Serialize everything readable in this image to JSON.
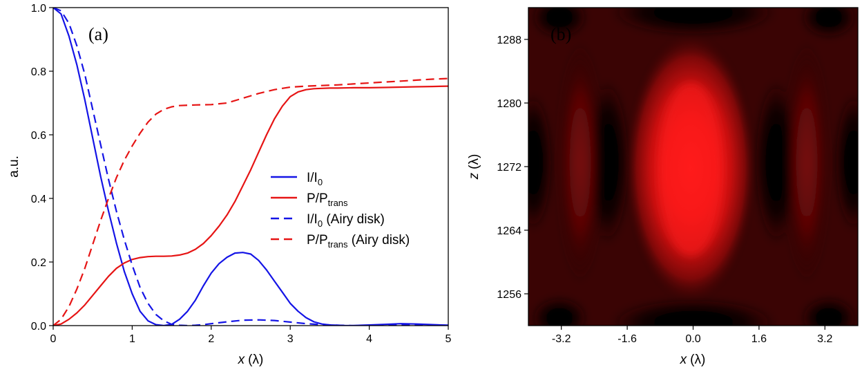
{
  "chart_data": [
    {
      "type": "line",
      "panel_label": "(a)",
      "xlabel_var": "x",
      "xlabel_unit": "(λ)",
      "ylabel": "a.u.",
      "xlim": [
        0,
        5
      ],
      "ylim": [
        0,
        1.0
      ],
      "x_ticks": [
        "0",
        "1",
        "2",
        "3",
        "4",
        "5"
      ],
      "y_ticks": [
        "0.0",
        "0.2",
        "0.4",
        "0.6",
        "0.8",
        "1.0"
      ],
      "legend_position": "right-middle",
      "series": [
        {
          "name_main": "I/I",
          "name_sub": "0",
          "name_tail": "",
          "color": "#1414e6",
          "dash": "solid",
          "x": [
            0,
            0.1,
            0.2,
            0.3,
            0.4,
            0.5,
            0.6,
            0.7,
            0.8,
            0.9,
            1.0,
            1.1,
            1.2,
            1.3,
            1.4,
            1.5,
            1.6,
            1.7,
            1.8,
            1.9,
            2.0,
            2.1,
            2.2,
            2.3,
            2.4,
            2.5,
            2.6,
            2.7,
            2.8,
            2.9,
            3.0,
            3.1,
            3.2,
            3.3,
            3.4,
            3.5,
            3.6,
            3.7,
            3.8,
            3.9,
            4.0,
            4.2,
            4.4,
            4.6,
            4.8,
            5.0
          ],
          "y": [
            1.0,
            0.98,
            0.91,
            0.82,
            0.71,
            0.59,
            0.47,
            0.36,
            0.26,
            0.17,
            0.1,
            0.045,
            0.015,
            0.003,
            0.0,
            0.004,
            0.02,
            0.045,
            0.08,
            0.125,
            0.165,
            0.195,
            0.215,
            0.228,
            0.23,
            0.225,
            0.205,
            0.175,
            0.14,
            0.105,
            0.07,
            0.045,
            0.025,
            0.012,
            0.005,
            0.002,
            0.001,
            0.0,
            0.0,
            0.001,
            0.002,
            0.004,
            0.006,
            0.005,
            0.003,
            0.001
          ]
        },
        {
          "name_main": "P/P",
          "name_sub": "trans",
          "name_tail": "",
          "color": "#e61414",
          "dash": "solid",
          "x": [
            0,
            0.1,
            0.2,
            0.3,
            0.4,
            0.5,
            0.6,
            0.7,
            0.8,
            0.9,
            1.0,
            1.1,
            1.2,
            1.3,
            1.4,
            1.5,
            1.6,
            1.7,
            1.8,
            1.9,
            2.0,
            2.1,
            2.2,
            2.3,
            2.4,
            2.5,
            2.6,
            2.7,
            2.8,
            2.9,
            3.0,
            3.1,
            3.2,
            3.3,
            3.4,
            3.5,
            3.6,
            3.8,
            4.0,
            4.2,
            4.4,
            4.6,
            4.8,
            5.0
          ],
          "y": [
            0,
            0.005,
            0.02,
            0.04,
            0.065,
            0.095,
            0.125,
            0.155,
            0.18,
            0.197,
            0.208,
            0.214,
            0.217,
            0.218,
            0.218,
            0.219,
            0.222,
            0.228,
            0.24,
            0.258,
            0.283,
            0.313,
            0.348,
            0.39,
            0.44,
            0.49,
            0.545,
            0.6,
            0.65,
            0.69,
            0.72,
            0.735,
            0.742,
            0.745,
            0.746,
            0.747,
            0.747,
            0.748,
            0.748,
            0.749,
            0.75,
            0.751,
            0.752,
            0.753
          ]
        },
        {
          "name_main": "I/I",
          "name_sub": "0",
          "name_tail": " (Airy disk)",
          "color": "#1414e6",
          "dash": "dashed",
          "x": [
            0,
            0.1,
            0.2,
            0.3,
            0.4,
            0.5,
            0.6,
            0.7,
            0.8,
            0.9,
            1.0,
            1.1,
            1.2,
            1.3,
            1.4,
            1.5,
            1.6,
            1.7,
            1.8,
            1.9,
            2.0,
            2.2,
            2.4,
            2.6,
            2.8,
            3.0,
            3.2,
            3.4,
            3.6,
            3.8,
            4.0,
            4.2,
            4.4,
            4.6,
            4.8,
            5.0
          ],
          "y": [
            1.0,
            0.99,
            0.95,
            0.88,
            0.79,
            0.68,
            0.57,
            0.46,
            0.36,
            0.27,
            0.19,
            0.12,
            0.07,
            0.035,
            0.015,
            0.004,
            0.001,
            0.0,
            0.001,
            0.003,
            0.006,
            0.012,
            0.017,
            0.018,
            0.016,
            0.011,
            0.006,
            0.003,
            0.001,
            0.0,
            0.0,
            0.001,
            0.002,
            0.003,
            0.002,
            0.001
          ]
        },
        {
          "name_main": "P/P",
          "name_sub": "trans",
          "name_tail": " (Airy disk)",
          "color": "#e61414",
          "dash": "dashed",
          "x": [
            0,
            0.1,
            0.2,
            0.3,
            0.4,
            0.5,
            0.6,
            0.7,
            0.8,
            0.9,
            1.0,
            1.1,
            1.2,
            1.3,
            1.4,
            1.5,
            1.6,
            1.8,
            2.0,
            2.2,
            2.4,
            2.6,
            2.8,
            3.0,
            3.2,
            3.4,
            3.6,
            3.8,
            4.0,
            4.2,
            4.4,
            4.6,
            4.8,
            5.0
          ],
          "y": [
            0,
            0.02,
            0.06,
            0.115,
            0.18,
            0.255,
            0.33,
            0.4,
            0.465,
            0.52,
            0.565,
            0.605,
            0.64,
            0.665,
            0.68,
            0.688,
            0.692,
            0.694,
            0.695,
            0.7,
            0.715,
            0.73,
            0.742,
            0.75,
            0.753,
            0.755,
            0.757,
            0.76,
            0.763,
            0.766,
            0.769,
            0.772,
            0.775,
            0.777
          ]
        }
      ]
    },
    {
      "type": "heatmap",
      "panel_label": "(b)",
      "xlabel_var": "x",
      "xlabel_unit": "(λ)",
      "ylabel_var": "z",
      "ylabel_unit": "(λ)",
      "xlim": [
        -4.0,
        4.0
      ],
      "ylim": [
        1252,
        1292
      ],
      "x_ticks": [
        -3.2,
        -1.6,
        0.0,
        1.6,
        3.2
      ],
      "x_tick_labels": [
        "-3.2",
        "-1.6",
        "0.0",
        "1.6",
        "3.2"
      ],
      "y_ticks": [
        1256,
        1264,
        1272,
        1280,
        1288
      ],
      "y_tick_labels": [
        "1256",
        "1264",
        "1272",
        "1280",
        "1288"
      ],
      "colormap": [
        "#000000",
        "#ff1a1a"
      ],
      "field": "intensity |E|^2 (a.u.)",
      "peak_center": {
        "x": -0.1,
        "z": 1273
      }
    }
  ]
}
